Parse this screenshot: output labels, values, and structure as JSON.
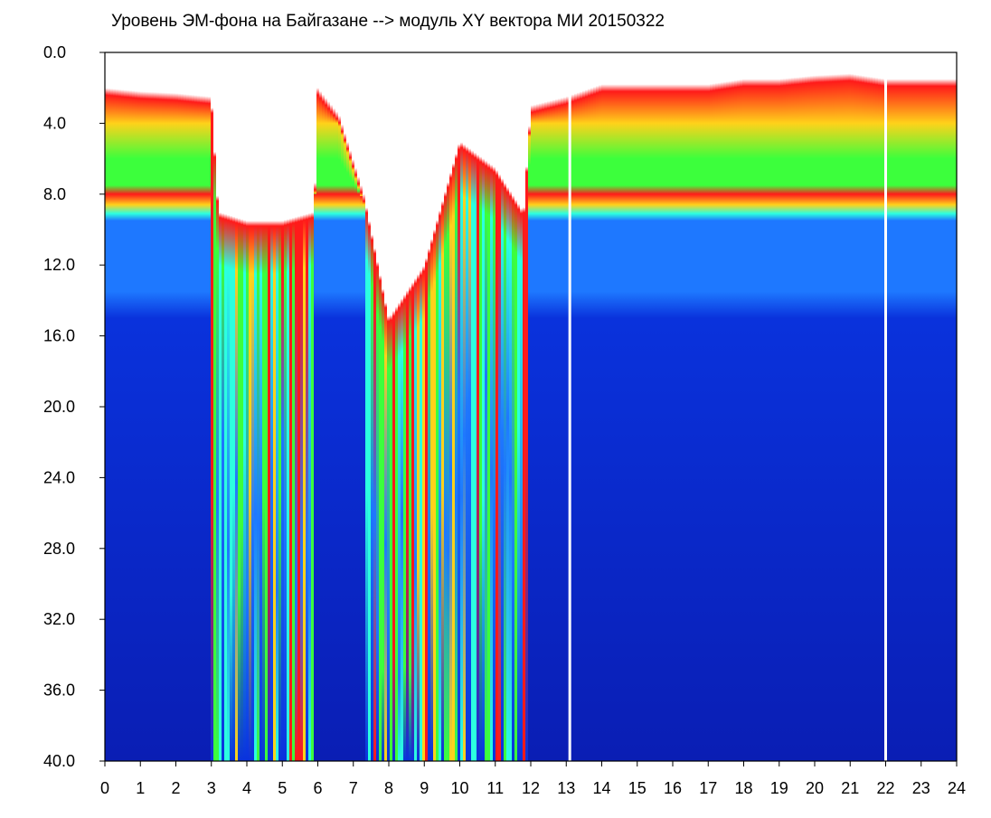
{
  "chart_data": {
    "type": "heatmap",
    "title": "Уровень ЭМ-фона на Байгазане  -->  модуль XY вектора МИ  20150322",
    "xlabel": "",
    "ylabel": "",
    "xlim": [
      0,
      24
    ],
    "ylim": [
      0.0,
      40.0
    ],
    "y_inverted": true,
    "grid": false,
    "x_ticks": [
      "0",
      "1",
      "2",
      "3",
      "4",
      "5",
      "6",
      "7",
      "8",
      "9",
      "10",
      "11",
      "12",
      "13",
      "14",
      "15",
      "16",
      "17",
      "18",
      "19",
      "20",
      "21",
      "22",
      "23",
      "24"
    ],
    "y_ticks": [
      "0.0",
      "4.0",
      "8.0",
      "12.0",
      "16.0",
      "20.0",
      "24.0",
      "28.0",
      "32.0",
      "36.0",
      "40.0"
    ],
    "colormap": [
      "#ffffff",
      "#ff1a1a",
      "#ffd21a",
      "#3cff3c",
      "#2cffe0",
      "#1e78ff",
      "#0a32dc",
      "#0a1eb4"
    ],
    "band_top_y_by_hour": [
      [
        0,
        2.0
      ],
      [
        1,
        2.2
      ],
      [
        2,
        2.3
      ],
      [
        3,
        2.5
      ],
      [
        3.2,
        9.0
      ],
      [
        4,
        9.5
      ],
      [
        5,
        9.5
      ],
      [
        5.9,
        9.0
      ],
      [
        6,
        2.0
      ],
      [
        6.6,
        3.5
      ],
      [
        7.3,
        8.0
      ],
      [
        8,
        15.0
      ],
      [
        9,
        12.0
      ],
      [
        10,
        5.0
      ],
      [
        11,
        6.5
      ],
      [
        11.8,
        9.0
      ],
      [
        12,
        3.0
      ],
      [
        13,
        2.5
      ],
      [
        14,
        1.8
      ],
      [
        15,
        1.8
      ],
      [
        16,
        1.8
      ],
      [
        17,
        1.8
      ],
      [
        18,
        1.5
      ],
      [
        19,
        1.5
      ],
      [
        20,
        1.3
      ],
      [
        21,
        1.2
      ],
      [
        22,
        1.5
      ],
      [
        23,
        1.5
      ],
      [
        24,
        1.5
      ]
    ],
    "green_band_y": [
      4.0,
      8.0
    ],
    "red_edge_y": [
      8.0,
      9.5
    ],
    "blue_from_y": 9.5,
    "dark_blue_from_y": 15.0,
    "disturbed_hours": [
      [
        3.0,
        5.9
      ],
      [
        7.3,
        11.9
      ]
    ],
    "white_gap_hours": [
      13.1,
      22.0
    ]
  }
}
